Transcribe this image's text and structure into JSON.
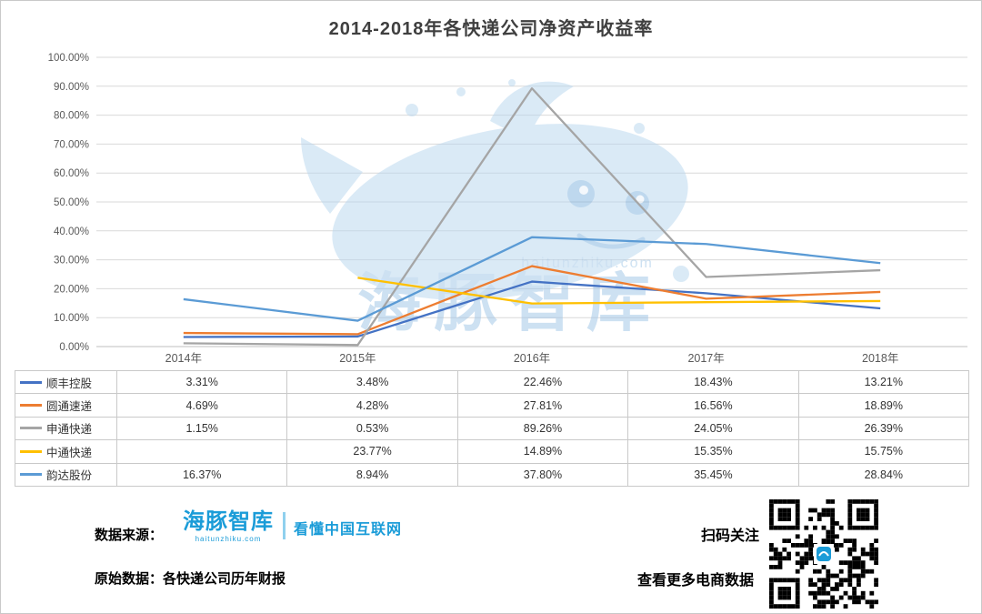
{
  "title": "2014-2018年各快递公司净资产收益率",
  "chart_data": {
    "type": "line",
    "title": "2014-2018年各快递公司净资产收益率",
    "xlabel": "",
    "ylabel": "",
    "categories": [
      "2014年",
      "2015年",
      "2016年",
      "2017年",
      "2018年"
    ],
    "series": [
      {
        "name": "顺丰控股",
        "color": "#4472C4",
        "values": [
          3.31,
          3.48,
          22.46,
          18.43,
          13.21
        ],
        "labels": [
          "3.31%",
          "3.48%",
          "22.46%",
          "18.43%",
          "13.21%"
        ]
      },
      {
        "name": "圆通速递",
        "color": "#ED7D31",
        "values": [
          4.69,
          4.28,
          27.81,
          16.56,
          18.89
        ],
        "labels": [
          "4.69%",
          "4.28%",
          "27.81%",
          "16.56%",
          "18.89%"
        ]
      },
      {
        "name": "申通快递",
        "color": "#A5A5A5",
        "values": [
          1.15,
          0.53,
          89.26,
          24.05,
          26.39
        ],
        "labels": [
          "1.15%",
          "0.53%",
          "89.26%",
          "24.05%",
          "26.39%"
        ]
      },
      {
        "name": "中通快递",
        "color": "#FFC000",
        "values": [
          null,
          23.77,
          14.89,
          15.35,
          15.75
        ],
        "labels": [
          "",
          "23.77%",
          "14.89%",
          "15.35%",
          "15.75%"
        ]
      },
      {
        "name": "韵达股份",
        "color": "#5B9BD5",
        "values": [
          16.37,
          8.94,
          37.8,
          35.45,
          28.84
        ],
        "labels": [
          "16.37%",
          "8.94%",
          "37.80%",
          "35.45%",
          "28.84%"
        ]
      }
    ],
    "ylim": [
      0,
      100
    ],
    "ytick_step": 10,
    "ytick_labels": [
      "0.00%",
      "10.00%",
      "20.00%",
      "30.00%",
      "40.00%",
      "50.00%",
      "60.00%",
      "70.00%",
      "80.00%",
      "90.00%",
      "100.00%"
    ],
    "grid": true,
    "legend_position": "table-left"
  },
  "watermark": {
    "text": "海豚智库",
    "url": "haitunzhiku.com"
  },
  "footer": {
    "source_label": "数据来源：",
    "brand_name": "海豚智库",
    "brand_url": "haitunzhiku.com",
    "brand_tagline": "看懂中国互联网",
    "raw_label": "原始数据：",
    "raw_value": "各快递公司历年财报",
    "qr_line1": "扫码关注",
    "qr_line2": "查看更多电商数据"
  }
}
